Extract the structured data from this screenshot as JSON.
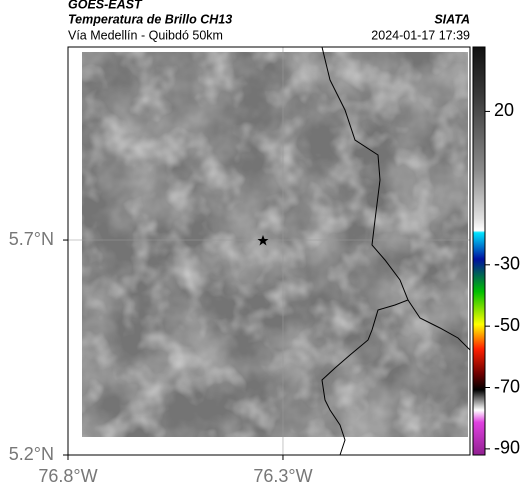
{
  "header": {
    "title": "GOES-EAST",
    "subtitle": "Temperatura de Brillo CH13",
    "region": "Vía Medellín - Quibdó 50km",
    "source": "SIATA",
    "timestamp": "2024-01-17 17:39"
  },
  "chart_data": {
    "type": "map",
    "xlim": [
      -76.8,
      -75.865
    ],
    "ylim": [
      5.2,
      6.149
    ],
    "xticks": [
      {
        "value": -76.8,
        "label": "76.8°W"
      },
      {
        "value": -76.3,
        "label": "76.3°W"
      }
    ],
    "yticks": [
      {
        "value": 5.7,
        "label": "5.7°N"
      },
      {
        "value": 5.2,
        "label": "5.2°N"
      }
    ],
    "grid": true,
    "colorbar": {
      "lim": [
        -92,
        41
      ],
      "ticks": [
        20,
        -30,
        -50,
        -70,
        -90
      ]
    }
  }
}
